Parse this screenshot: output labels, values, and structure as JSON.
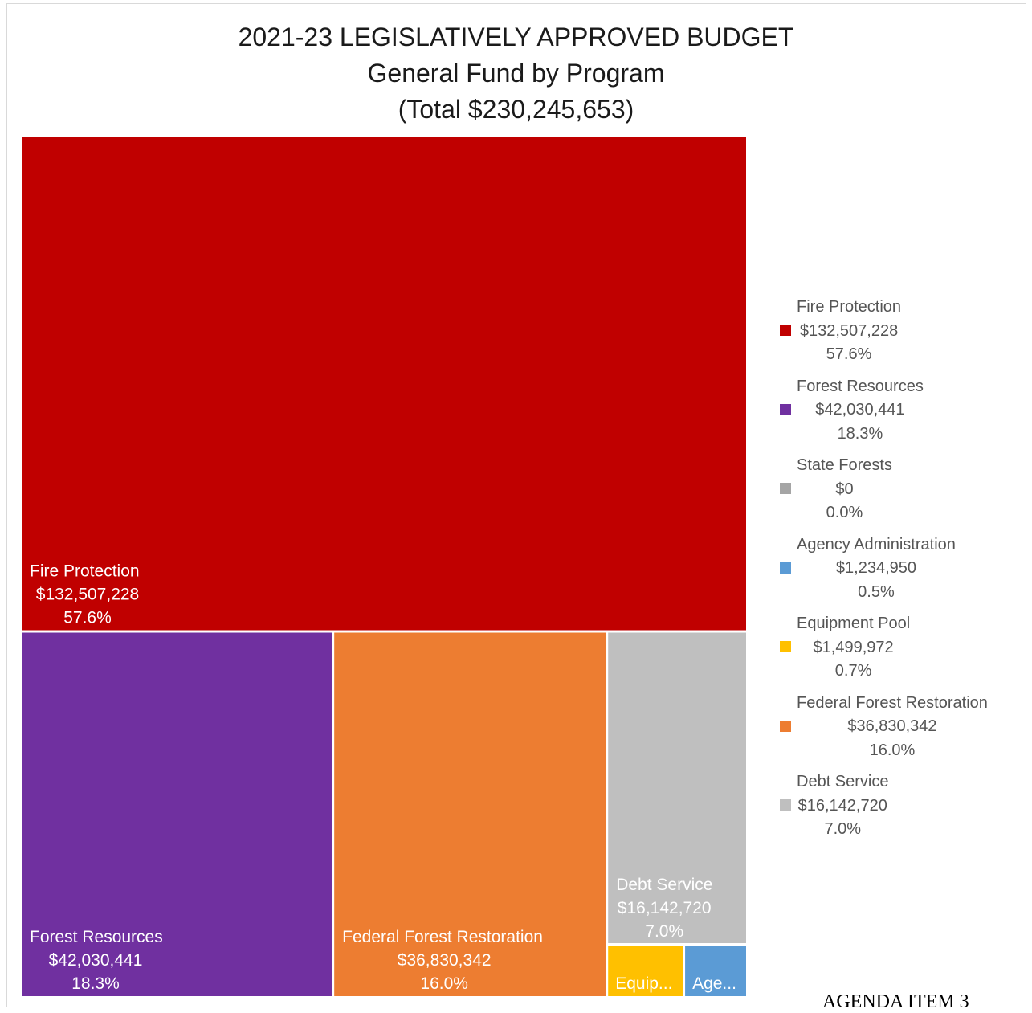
{
  "chart_data": {
    "type": "treemap",
    "title": [
      "2021-23 LEGISLATIVELY APPROVED BUDGET",
      "General Fund by Program",
      "(Total $230,245,653)"
    ],
    "total": 230245653,
    "items": [
      {
        "name": "Fire Protection",
        "value": 132507228,
        "value_label": "$132,507,228",
        "percent": "57.6%",
        "color": "#c00000",
        "tile_label": "Fire Protection"
      },
      {
        "name": "Forest Resources",
        "value": 42030441,
        "value_label": "$42,030,441",
        "percent": "18.3%",
        "color": "#7030a0",
        "tile_label": "Forest Resources"
      },
      {
        "name": "State Forests",
        "value": 0,
        "value_label": "$0",
        "percent": "0.0%",
        "color": "#a5a5a5",
        "tile_label": ""
      },
      {
        "name": "Agency Administration",
        "value": 1234950,
        "value_label": "$1,234,950",
        "percent": "0.5%",
        "color": "#5b9bd5",
        "tile_label": "Age..."
      },
      {
        "name": "Equipment Pool",
        "value": 1499972,
        "value_label": "$1,499,972",
        "percent": "0.7%",
        "color": "#ffc000",
        "tile_label": "Equip..."
      },
      {
        "name": "Federal Forest Restoration",
        "value": 36830342,
        "value_label": "$36,830,342",
        "percent": "16.0%",
        "color": "#ed7d31",
        "tile_label": "Federal Forest Restoration"
      },
      {
        "name": "Debt Service",
        "value": 16142720,
        "value_label": "$16,142,720",
        "percent": "7.0%",
        "color": "#bfbfbf",
        "tile_label": "Debt Service"
      }
    ],
    "legend_position": "right"
  },
  "footer": {
    "agenda": "AGENDA ITEM 3"
  }
}
